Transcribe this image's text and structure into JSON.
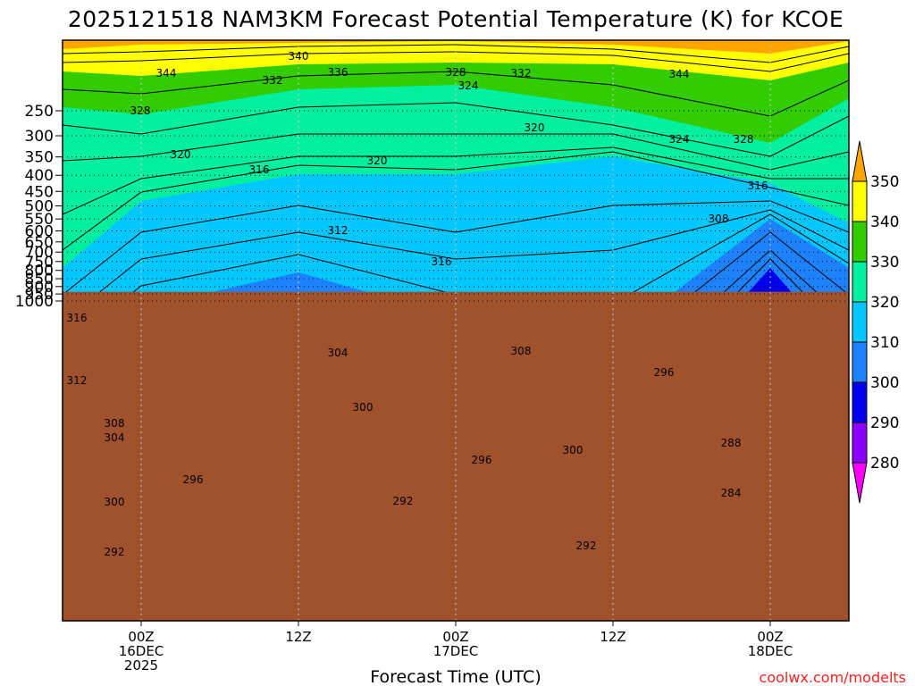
{
  "chart_data": {
    "type": "contour",
    "title": "2025121518 NAM3KM Forecast Potential Temperature (K) for KCOE",
    "xlabel": "Forecast Time (UTC)",
    "ylabel": "",
    "y_axis": {
      "scale": "pressure (log)",
      "inverted": true,
      "ticks": [
        "250",
        "300",
        "350",
        "400",
        "450",
        "500",
        "550",
        "600",
        "650",
        "700",
        "750",
        "800",
        "850",
        "900",
        "950",
        "1000"
      ]
    },
    "x_axis": {
      "ticks": [
        {
          "label": "00Z",
          "label2": "16DEC",
          "label3": "2025"
        },
        {
          "label": "12Z",
          "label2": "",
          "label3": ""
        },
        {
          "label": "00Z",
          "label2": "17DEC",
          "label3": ""
        },
        {
          "label": "12Z",
          "label2": "",
          "label3": ""
        },
        {
          "label": "00Z",
          "label2": "18DEC",
          "label3": ""
        }
      ]
    },
    "grid": "dotted",
    "terrain_below_hPa": 935,
    "colorbar": {
      "levels": [
        "350",
        "340",
        "330",
        "320",
        "310",
        "300",
        "290",
        "280"
      ],
      "colors": [
        "#ffa500",
        "#ffff00",
        "#33cc00",
        "#00f0a0",
        "#00c8ff",
        "#1e82ff",
        "#0000ee",
        "#8c00ff",
        "#ff00ff"
      ]
    },
    "contour_labels": [
      {
        "text": "344"
      },
      {
        "text": "340"
      },
      {
        "text": "336"
      },
      {
        "text": "332"
      },
      {
        "text": "328"
      },
      {
        "text": "328"
      },
      {
        "text": "324"
      },
      {
        "text": "332"
      },
      {
        "text": "344"
      },
      {
        "text": "320"
      },
      {
        "text": "324"
      },
      {
        "text": "328"
      },
      {
        "text": "320"
      },
      {
        "text": "316"
      },
      {
        "text": "320"
      },
      {
        "text": "316"
      },
      {
        "text": "312"
      },
      {
        "text": "308"
      },
      {
        "text": "316"
      },
      {
        "text": "316"
      },
      {
        "text": "304"
      },
      {
        "text": "308"
      },
      {
        "text": "296"
      },
      {
        "text": "312"
      },
      {
        "text": "308"
      },
      {
        "text": "304"
      },
      {
        "text": "300"
      },
      {
        "text": "300"
      },
      {
        "text": "288"
      },
      {
        "text": "296"
      },
      {
        "text": "296"
      },
      {
        "text": "300"
      },
      {
        "text": "292"
      },
      {
        "text": "284"
      },
      {
        "text": "292"
      },
      {
        "text": "292"
      }
    ]
  },
  "watermark": "coolwx.com/modelts"
}
